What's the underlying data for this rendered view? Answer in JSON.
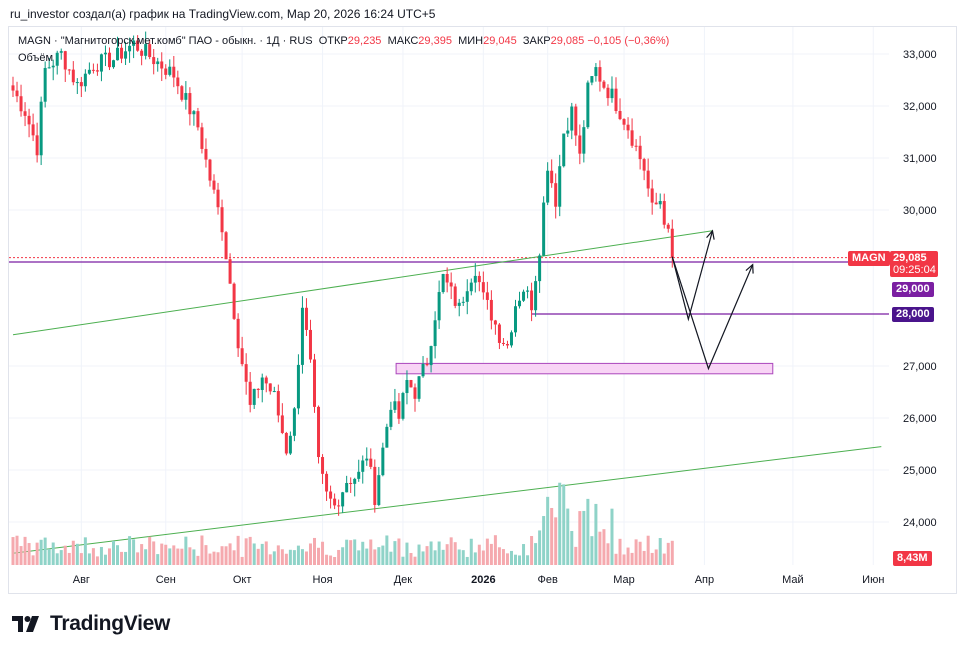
{
  "header": {
    "text": "ru_investor создал(а) график на TradingView.com, Мар 20, 2026 16:24 UTC+5"
  },
  "legend": {
    "symbol": "MAGN · \"Магнитогорск.мет.комб\" ПАО - обыкн. · 1Д · RUS",
    "open_label": "ОТКР",
    "open": "29,235",
    "high_label": "МАКС",
    "high": "29,395",
    "low_label": "МИН",
    "low": "29,045",
    "close_label": "ЗАКР",
    "close": "29,085",
    "change": "−0,105 (−0,36%)",
    "volume_label": "Объём"
  },
  "price_tags": {
    "symbol": "MAGN",
    "last_price": "29,085",
    "countdown": "09:25:04",
    "level_1": "29,000",
    "level_2": "28,000",
    "volume": "8,43M"
  },
  "colors": {
    "up": "#089981",
    "down": "#f23645",
    "volume_up": "#8fd3c8",
    "volume_down": "#f5a9ae",
    "trend": "#4caf50",
    "level": "#7b1fa2",
    "zone_fill": "#f8d4f5",
    "grid": "#f0f3fa"
  },
  "footer": {
    "brand": "TradingView",
    "logo_icon": "tradingview-logo-icon"
  },
  "chart_data": {
    "type": "candlestick",
    "title": "MAGN · \"Магнитогорск.мет.комб\" ПАО - обыкн. · 1Д · RUS",
    "y_ticks": [
      "33,000",
      "32,000",
      "31,000",
      "30,000",
      "27,000",
      "26,000",
      "25,000",
      "24,000"
    ],
    "y_range": [
      23.1,
      33.6
    ],
    "x_tick_labels": [
      "Авг",
      "Сен",
      "Окт",
      "Ноя",
      "Дек",
      "2026",
      "Фев",
      "Мар",
      "Апр",
      "Май",
      "Июн"
    ],
    "price_path": [
      {
        "t": 0,
        "p": 32.3
      },
      {
        "t": 3,
        "p": 31.9
      },
      {
        "t": 6,
        "p": 31.2
      },
      {
        "t": 8,
        "p": 32.7
      },
      {
        "t": 12,
        "p": 33.0
      },
      {
        "t": 16,
        "p": 32.4
      },
      {
        "t": 20,
        "p": 32.8
      },
      {
        "t": 25,
        "p": 32.9
      },
      {
        "t": 30,
        "p": 33.2
      },
      {
        "t": 35,
        "p": 32.9
      },
      {
        "t": 40,
        "p": 32.6
      },
      {
        "t": 43,
        "p": 32.1
      },
      {
        "t": 46,
        "p": 31.6
      },
      {
        "t": 49,
        "p": 30.6
      },
      {
        "t": 52,
        "p": 29.7
      },
      {
        "t": 54,
        "p": 28.6
      },
      {
        "t": 56,
        "p": 27.5
      },
      {
        "t": 59,
        "p": 26.2
      },
      {
        "t": 62,
        "p": 26.8
      },
      {
        "t": 65,
        "p": 26.4
      },
      {
        "t": 68,
        "p": 25.4
      },
      {
        "t": 70,
        "p": 26.1
      },
      {
        "t": 72,
        "p": 28.2
      },
      {
        "t": 74,
        "p": 27.0
      },
      {
        "t": 76,
        "p": 25.1
      },
      {
        "t": 78,
        "p": 24.5
      },
      {
        "t": 80,
        "p": 24.3
      },
      {
        "t": 83,
        "p": 24.8
      },
      {
        "t": 86,
        "p": 24.9
      },
      {
        "t": 88,
        "p": 25.3
      },
      {
        "t": 90,
        "p": 24.5
      },
      {
        "t": 92,
        "p": 25.4
      },
      {
        "t": 94,
        "p": 26.3
      },
      {
        "t": 96,
        "p": 26.0
      },
      {
        "t": 98,
        "p": 26.7
      },
      {
        "t": 100,
        "p": 26.5
      },
      {
        "t": 103,
        "p": 27.1
      },
      {
        "t": 105,
        "p": 28.0
      },
      {
        "t": 107,
        "p": 28.7
      },
      {
        "t": 109,
        "p": 28.4
      },
      {
        "t": 111,
        "p": 28.1
      },
      {
        "t": 113,
        "p": 28.6
      },
      {
        "t": 115,
        "p": 28.9
      },
      {
        "t": 117,
        "p": 28.3
      },
      {
        "t": 119,
        "p": 28.0
      },
      {
        "t": 121,
        "p": 27.6
      },
      {
        "t": 123,
        "p": 27.4
      },
      {
        "t": 125,
        "p": 28.2
      },
      {
        "t": 127,
        "p": 28.5
      },
      {
        "t": 129,
        "p": 28.2
      },
      {
        "t": 131,
        "p": 29.3
      },
      {
        "t": 133,
        "p": 30.9
      },
      {
        "t": 135,
        "p": 30.2
      },
      {
        "t": 137,
        "p": 31.5
      },
      {
        "t": 139,
        "p": 31.9
      },
      {
        "t": 141,
        "p": 31.0
      },
      {
        "t": 143,
        "p": 32.3
      },
      {
        "t": 145,
        "p": 32.7
      },
      {
        "t": 147,
        "p": 32.4
      },
      {
        "t": 149,
        "p": 32.2
      },
      {
        "t": 151,
        "p": 31.9
      },
      {
        "t": 153,
        "p": 31.6
      },
      {
        "t": 155,
        "p": 31.2
      },
      {
        "t": 157,
        "p": 30.8
      },
      {
        "t": 159,
        "p": 30.0
      },
      {
        "t": 161,
        "p": 30.2
      },
      {
        "t": 163,
        "p": 29.5
      },
      {
        "t": 164,
        "p": 29.085
      }
    ],
    "levels": [
      {
        "name": "level-29000",
        "value": 29.0
      },
      {
        "name": "level-28000",
        "value": 28.0
      }
    ],
    "support_zone": {
      "low": 26.85,
      "high": 27.05
    },
    "trendlines": [
      {
        "name": "upper-trendline",
        "from": {
          "t": 0,
          "p": 27.6
        },
        "to": {
          "t": 174,
          "p": 29.6
        }
      },
      {
        "name": "lower-trendline",
        "from": {
          "t": 0,
          "p": 23.4
        },
        "to": {
          "t": 216,
          "p": 25.45
        }
      }
    ],
    "projection_paths": [
      {
        "name": "projection-path-upper",
        "points": [
          {
            "t": 164,
            "p": 29.1
          },
          {
            "t": 168,
            "p": 27.9
          },
          {
            "t": 174,
            "p": 29.6
          }
        ]
      },
      {
        "name": "projection-path-lower",
        "points": [
          {
            "t": 164,
            "p": 29.1
          },
          {
            "t": 173,
            "p": 26.95
          },
          {
            "t": 184,
            "p": 28.95
          }
        ]
      }
    ]
  }
}
